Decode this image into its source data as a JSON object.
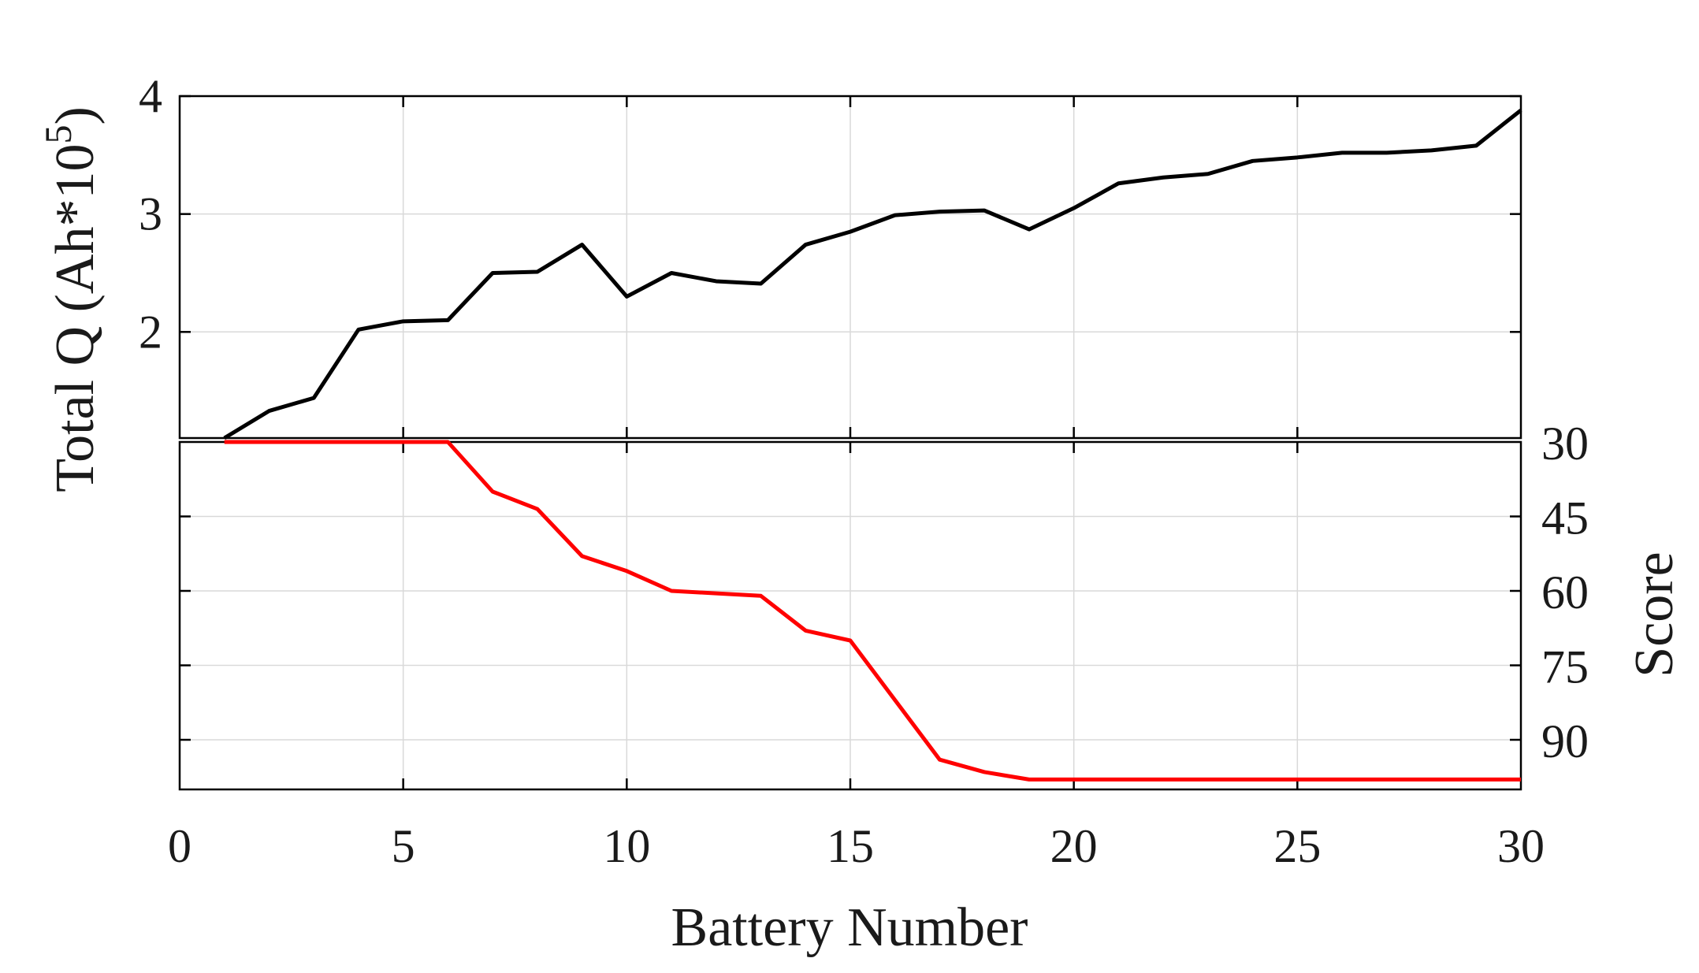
{
  "chart_data": [
    {
      "type": "line",
      "panel": "top",
      "ylabel": "Total Q (Ah*10",
      "ylabel_superscript": "5",
      "ylabel_close": ")",
      "xlim": [
        0,
        30
      ],
      "ylim": [
        1.1,
        4
      ],
      "yticks": [
        "2",
        "3",
        "4"
      ],
      "ytick_values": [
        2,
        3,
        4
      ],
      "grid": true,
      "series": [
        {
          "color": "#000000",
          "x": [
            1,
            2,
            3,
            4,
            5,
            6,
            7,
            8,
            9,
            10,
            11,
            12,
            13,
            14,
            15,
            16,
            17,
            18,
            19,
            20,
            21,
            22,
            23,
            24,
            25,
            26,
            27,
            28,
            29,
            30
          ],
          "values": [
            1.1,
            1.33,
            1.44,
            2.02,
            2.09,
            2.1,
            2.5,
            2.51,
            2.74,
            2.3,
            2.5,
            2.43,
            2.41,
            2.74,
            2.85,
            2.99,
            3.02,
            3.03,
            2.87,
            3.05,
            3.26,
            3.31,
            3.34,
            3.45,
            3.48,
            3.52,
            3.52,
            3.54,
            3.58,
            3.88
          ]
        }
      ]
    },
    {
      "type": "line",
      "panel": "bottom",
      "ylabel": "Score",
      "y_axis_side": "right",
      "y_reversed": true,
      "xlabel": "Battery Number",
      "xlim": [
        0,
        30
      ],
      "ylim": [
        30,
        100
      ],
      "xticks": [
        "0",
        "5",
        "10",
        "15",
        "20",
        "25",
        "30"
      ],
      "xtick_values": [
        0,
        5,
        10,
        15,
        20,
        25,
        30
      ],
      "yticks": [
        "30",
        "45",
        "60",
        "75",
        "90"
      ],
      "ytick_values": [
        30,
        45,
        60,
        75,
        90
      ],
      "grid": true,
      "series": [
        {
          "color": "#ff0000",
          "x": [
            1,
            2,
            3,
            4,
            5,
            6,
            7,
            8,
            9,
            10,
            11,
            12,
            13,
            14,
            15,
            16,
            17,
            18,
            19,
            20,
            21,
            22,
            23,
            24,
            25,
            26,
            27,
            28,
            29,
            30
          ],
          "values": [
            30,
            30,
            30,
            30,
            30,
            30,
            40,
            43.5,
            53,
            56,
            60,
            60.5,
            61,
            68,
            70,
            82,
            94,
            96.5,
            98,
            98,
            98,
            98,
            98,
            98,
            98,
            98,
            98,
            98,
            98,
            98
          ]
        }
      ]
    }
  ]
}
